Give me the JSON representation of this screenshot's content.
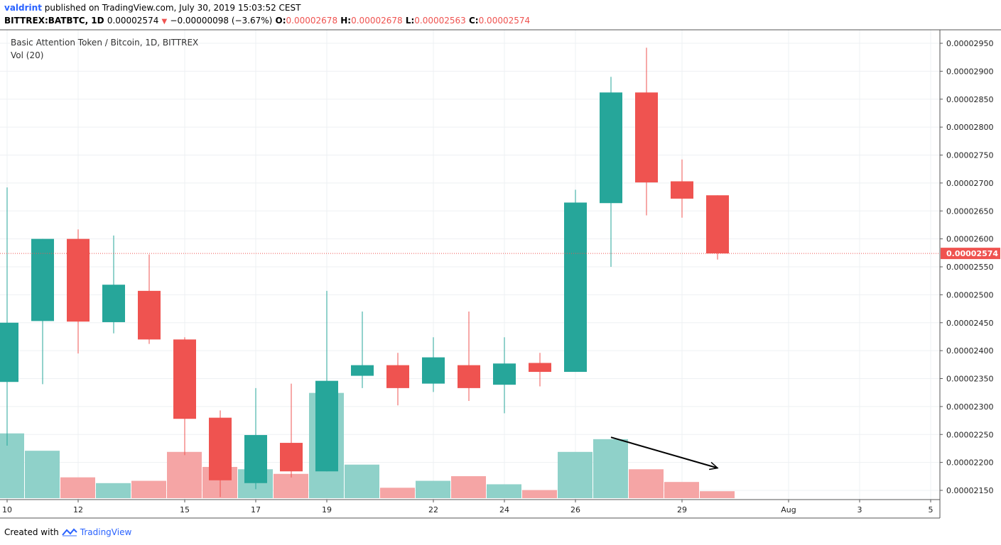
{
  "header": {
    "user": "valdrint",
    "published_text": "published on TradingView.com, July 30, 2019 15:03:52 CEST",
    "symbol_line": "BITTREX:BATBTC, 1D",
    "last_price": "0.00002574",
    "change": "−0.00000098 (−3.67%)",
    "o_label": "O:",
    "o_value": "0.00002678",
    "h_label": "H:",
    "h_value": "0.00002678",
    "l_label": "L:",
    "l_value": "0.00002563",
    "c_label": "C:",
    "c_value": "0.00002574"
  },
  "legend": {
    "title": "Basic Attention Token / Bitcoin, 1D, BITTREX",
    "volume": "Vol (20)"
  },
  "footer": {
    "created_with": "Created with",
    "brand": "TradingView"
  },
  "colors": {
    "up": "#26a69a",
    "down": "#ef5350",
    "vol_up": "#8fd1c9",
    "vol_down": "#f5a5a5",
    "grid": "#eef0f3",
    "price_line": "#ef5350"
  },
  "chart_data": {
    "type": "candlestick",
    "title": "Basic Attention Token / Bitcoin, 1D, BITTREX",
    "y_tick_labels": [
      "0.00002950",
      "0.00002900",
      "0.00002850",
      "0.00002800",
      "0.00002750",
      "0.00002700",
      "0.00002650",
      "0.00002600",
      "0.00002550",
      "0.00002500",
      "0.00002450",
      "0.00002400",
      "0.00002350",
      "0.00002300",
      "0.00002250",
      "0.00002200",
      "0.00002150"
    ],
    "ylim": [
      2.13e-05,
      2.97e-05
    ],
    "x_tick_labels": [
      "10",
      "12",
      "15",
      "17",
      "19",
      "22",
      "24",
      "26",
      "29",
      "Aug",
      "3",
      "5"
    ],
    "current_price_label": "0.00002574",
    "current_price": 2.574e-05,
    "candles": [
      {
        "date": "Jul 10",
        "open": 2.344e-05,
        "high": 2.692e-05,
        "low": 2.23e-05,
        "close": 2.45e-05
      },
      {
        "date": "Jul 11",
        "open": 2.453e-05,
        "high": 2.6e-05,
        "low": 2.34e-05,
        "close": 2.6e-05
      },
      {
        "date": "Jul 12",
        "open": 2.6e-05,
        "high": 2.617e-05,
        "low": 2.395e-05,
        "close": 2.452e-05
      },
      {
        "date": "Jul 13",
        "open": 2.451e-05,
        "high": 2.606e-05,
        "low": 2.431e-05,
        "close": 2.518e-05
      },
      {
        "date": "Jul 14",
        "open": 2.507e-05,
        "high": 2.572e-05,
        "low": 2.412e-05,
        "close": 2.42e-05
      },
      {
        "date": "Jul 15",
        "open": 2.42e-05,
        "high": 2.424e-05,
        "low": 2.213e-05,
        "close": 2.278e-05
      },
      {
        "date": "Jul 16",
        "open": 2.28e-05,
        "high": 2.293e-05,
        "low": 2.138e-05,
        "close": 2.168e-05
      },
      {
        "date": "Jul 17",
        "open": 2.163e-05,
        "high": 2.333e-05,
        "low": 2.152e-05,
        "close": 2.249e-05
      },
      {
        "date": "Jul 18",
        "open": 2.235e-05,
        "high": 2.341e-05,
        "low": 2.173e-05,
        "close": 2.184e-05
      },
      {
        "date": "Jul 19",
        "open": 2.184e-05,
        "high": 2.507e-05,
        "low": 2.184e-05,
        "close": 2.346e-05
      },
      {
        "date": "Jul 20",
        "open": 2.355e-05,
        "high": 2.47e-05,
        "low": 2.333e-05,
        "close": 2.374e-05
      },
      {
        "date": "Jul 21",
        "open": 2.374e-05,
        "high": 2.396e-05,
        "low": 2.302e-05,
        "close": 2.333e-05
      },
      {
        "date": "Jul 22",
        "open": 2.341e-05,
        "high": 2.424e-05,
        "low": 2.326e-05,
        "close": 2.388e-05
      },
      {
        "date": "Jul 23",
        "open": 2.374e-05,
        "high": 2.47e-05,
        "low": 2.31e-05,
        "close": 2.333e-05
      },
      {
        "date": "Jul 24",
        "open": 2.339e-05,
        "high": 2.424e-05,
        "low": 2.288e-05,
        "close": 2.377e-05
      },
      {
        "date": "Jul 25",
        "open": 2.378e-05,
        "high": 2.396e-05,
        "low": 2.336e-05,
        "close": 2.362e-05
      },
      {
        "date": "Jul 26",
        "open": 2.362e-05,
        "high": 2.688e-05,
        "low": 2.362e-05,
        "close": 2.665e-05
      },
      {
        "date": "Jul 27",
        "open": 2.664e-05,
        "high": 2.89e-05,
        "low": 2.55e-05,
        "close": 2.862e-05
      },
      {
        "date": "Jul 28",
        "open": 2.862e-05,
        "high": 2.942e-05,
        "low": 2.642e-05,
        "close": 2.701e-05
      },
      {
        "date": "Jul 29",
        "open": 2.703e-05,
        "high": 2.742e-05,
        "low": 2.638e-05,
        "close": 2.672e-05
      },
      {
        "date": "Jul 30",
        "open": 2.678e-05,
        "high": 2.678e-05,
        "low": 2.563e-05,
        "close": 2.574e-05
      }
    ],
    "volume_relative": [
      0.56,
      0.41,
      0.18,
      0.13,
      0.15,
      0.4,
      0.27,
      0.25,
      0.21,
      0.91,
      0.29,
      0.09,
      0.15,
      0.19,
      0.12,
      0.07,
      0.4,
      0.51,
      0.25,
      0.14,
      0.06
    ]
  },
  "annotation": {
    "type": "arrow",
    "from": {
      "date": "Jul 27",
      "price": 2.245e-05
    },
    "to": {
      "date": "Jul 30",
      "price": 2.19e-05
    }
  }
}
